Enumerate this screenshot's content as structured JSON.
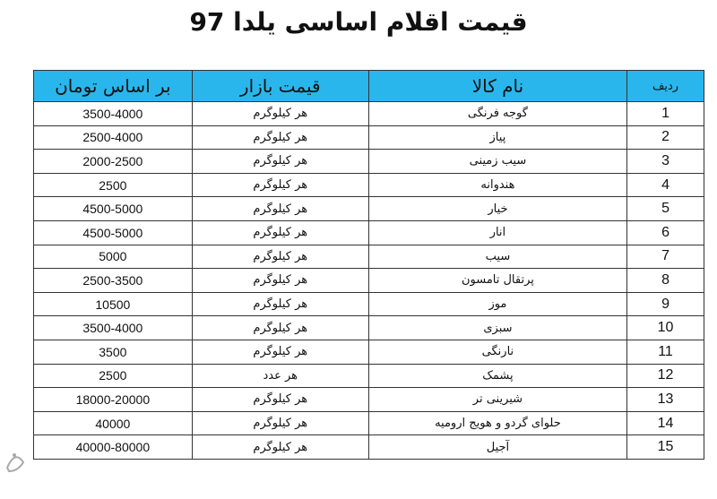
{
  "title": "قیمت اقلام اساسی یلدا 97",
  "headers": [
    "ردیف",
    "نام کالا",
    "قیمت بازار",
    "بر اساس تومان"
  ],
  "rows": [
    [
      "1",
      "گوجه فرنگی",
      "هر کیلوگرم",
      "3500-4000"
    ],
    [
      "2",
      "پیاز",
      "هر کیلوگرم",
      "2500-4000"
    ],
    [
      "3",
      "سیب زمینی",
      "هر کیلوگرم",
      "2000-2500"
    ],
    [
      "4",
      "هندوانه",
      "هر کیلوگرم",
      "2500"
    ],
    [
      "5",
      "خیار",
      "هر کیلوگرم",
      "4500-5000"
    ],
    [
      "6",
      "انار",
      "هر کیلوگرم",
      "4500-5000"
    ],
    [
      "7",
      "سیب",
      "هر کیلوگرم",
      "5000"
    ],
    [
      "8",
      "پرتقال تامسون",
      "هر کیلوگرم",
      "2500-3500"
    ],
    [
      "9",
      "موز",
      "هر کیلوگرم",
      "10500"
    ],
    [
      "10",
      "سبزی",
      "هر کیلوگرم",
      "3500-4000"
    ],
    [
      "11",
      "نارنگی",
      "هر کیلوگرم",
      "3500"
    ],
    [
      "12",
      "پشمک",
      "هر عدد",
      "2500"
    ],
    [
      "13",
      "شیرینی تر",
      "هر کیلوگرم",
      "18000-20000"
    ],
    [
      "14",
      "حلوای گردو و هویج ارومیه",
      "هر کیلوگرم",
      "40000"
    ],
    [
      "15",
      "آجیل",
      "هر کیلوگرم",
      "40000-80000"
    ]
  ],
  "colors": {
    "header_bg": "#29b6ec"
  },
  "watermark_icon": "tasnim-logo-icon"
}
